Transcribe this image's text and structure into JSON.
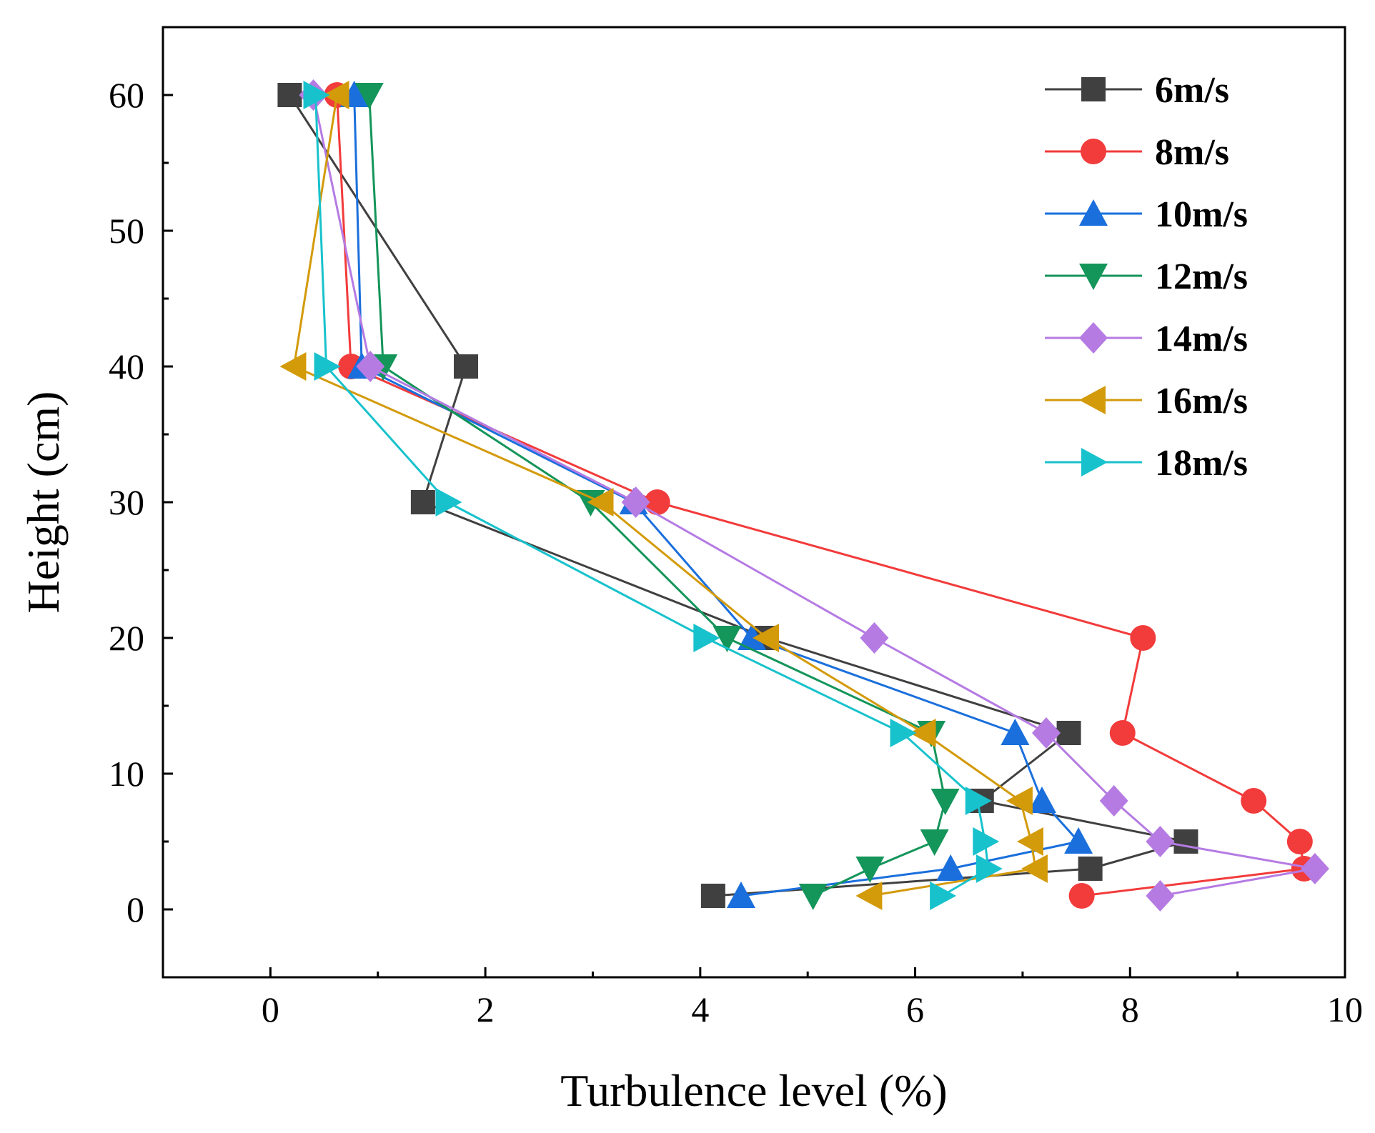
{
  "chart_data": {
    "type": "line",
    "title": "",
    "xlabel": "Turbulence level (%)",
    "ylabel": "Height (cm)",
    "xlim": [
      -1,
      10
    ],
    "ylim": [
      -5,
      65
    ],
    "xticks": [
      0,
      2,
      4,
      6,
      8,
      10
    ],
    "yticks": [
      0,
      10,
      20,
      30,
      40,
      50,
      60
    ],
    "grid": false,
    "legend_position": "top-right",
    "series": [
      {
        "name": "6m/s",
        "color": "#404040",
        "marker": "square",
        "x": [
          0.18,
          1.82,
          1.42,
          4.62,
          7.43,
          6.62,
          8.52,
          7.63,
          4.12
        ],
        "y": [
          60,
          40,
          30,
          20,
          13,
          8,
          5,
          3,
          1
        ]
      },
      {
        "name": "8m/s",
        "color": "#f23b3b",
        "marker": "circle",
        "x": [
          0.62,
          0.75,
          3.6,
          8.12,
          7.93,
          9.15,
          9.58,
          9.62,
          7.55
        ],
        "y": [
          60,
          40,
          30,
          20,
          13,
          8,
          5,
          3,
          1
        ]
      },
      {
        "name": "10m/s",
        "color": "#1a6fdc",
        "marker": "triangle-up",
        "x": [
          0.78,
          0.85,
          3.38,
          4.48,
          6.93,
          7.18,
          7.52,
          6.33,
          4.38
        ],
        "y": [
          60,
          40,
          30,
          20,
          13,
          8,
          5,
          3,
          1
        ]
      },
      {
        "name": "12m/s",
        "color": "#14955a",
        "marker": "triangle-down",
        "x": [
          0.92,
          1.05,
          2.98,
          4.25,
          6.15,
          6.28,
          6.18,
          5.58,
          5.05
        ],
        "y": [
          60,
          40,
          30,
          20,
          13,
          8,
          5,
          3,
          1
        ]
      },
      {
        "name": "14m/s",
        "color": "#b57be3",
        "marker": "diamond",
        "x": [
          0.4,
          0.93,
          3.4,
          5.62,
          7.22,
          7.85,
          8.28,
          9.72,
          8.28
        ],
        "y": [
          60,
          40,
          30,
          20,
          13,
          8,
          5,
          3,
          1
        ]
      },
      {
        "name": "16m/s",
        "color": "#d39a0a",
        "marker": "triangle-left",
        "x": [
          0.62,
          0.22,
          3.08,
          4.62,
          6.08,
          6.98,
          7.08,
          7.12,
          5.58
        ],
        "y": [
          60,
          40,
          30,
          20,
          13,
          8,
          5,
          3,
          1
        ]
      },
      {
        "name": "18m/s",
        "color": "#18c2cc",
        "marker": "triangle-right",
        "x": [
          0.42,
          0.52,
          1.65,
          4.05,
          5.88,
          6.58,
          6.65,
          6.68,
          6.25
        ],
        "y": [
          60,
          40,
          30,
          20,
          13,
          8,
          5,
          3,
          1
        ]
      }
    ]
  }
}
